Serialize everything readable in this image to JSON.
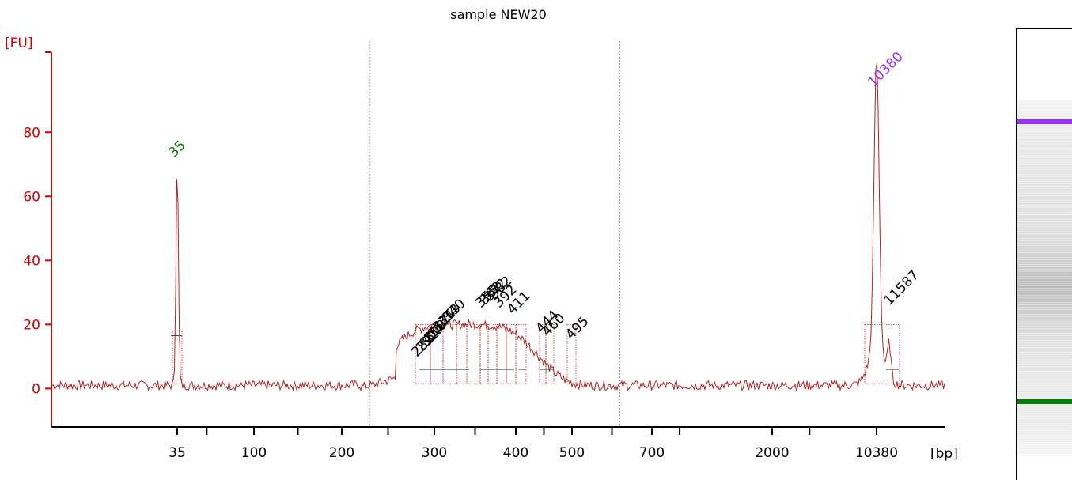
{
  "chart_data": {
    "type": "line",
    "title": "sample NEW20",
    "ylabel": "[FU]",
    "xlabel": "[bp]",
    "ylim": [
      -12,
      105
    ],
    "yticks": [
      0,
      20,
      40,
      60,
      80
    ],
    "xticks": [
      "35",
      "100",
      "200",
      "300",
      "400",
      "500",
      "700",
      "2000",
      "10380"
    ],
    "grid": false,
    "colors": {
      "axis": "#d40000",
      "trace": "#b22222",
      "marker_lower": "#008000",
      "marker_upper": "#9b30ff",
      "peak_label": "#000000",
      "region_line": "#888888"
    },
    "series": [
      {
        "values_note": "",
        "points": [
          [
            "35",
            70
          ],
          [
            "10380",
            92
          ],
          [
            "11587",
            22
          ]
        ]
      }
    ],
    "markers": [
      {
        "label": "35",
        "size": "35",
        "fu": 70,
        "color": "marker_lower"
      },
      {
        "label": "10380",
        "size": "10380",
        "fu": 92,
        "color": "marker_upper"
      }
    ],
    "peak_labels": [
      "282",
      "292",
      "300",
      "309",
      "317",
      "326",
      "333",
      "340",
      "355",
      "362",
      "372",
      "382",
      "392",
      "411",
      "444",
      "460",
      "495",
      "11587"
    ]
  },
  "gel": {
    "bands": [
      {
        "name": "upper-marker",
        "color": "#9b30ff",
        "position": 0.21
      },
      {
        "name": "lower-marker",
        "color": "#008000",
        "position": 0.83
      }
    ]
  }
}
